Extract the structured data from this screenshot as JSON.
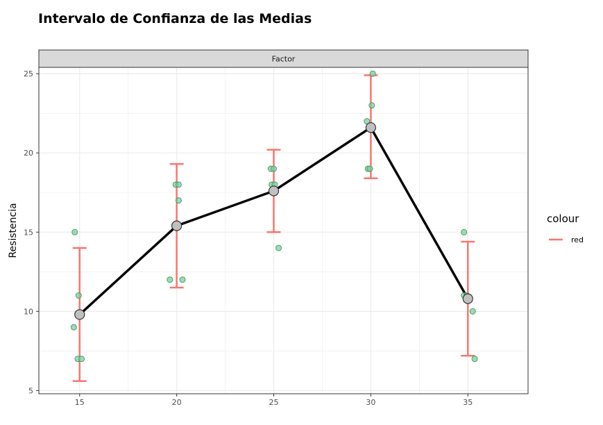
{
  "chart_data": {
    "type": "line",
    "title": "Intervalo de Confianza de las Medias",
    "facet_label": "Factor",
    "xlabel": "",
    "ylabel": "Resistencia",
    "x_categories": [
      15,
      20,
      25,
      30,
      35
    ],
    "xlim": [
      12.9,
      38.1
    ],
    "ylim": [
      4.8,
      25.4
    ],
    "y_ticks": [
      5,
      10,
      15,
      20,
      25
    ],
    "grid": true,
    "means": [
      {
        "x": 15,
        "y": 9.8
      },
      {
        "x": 20,
        "y": 15.4
      },
      {
        "x": 25,
        "y": 17.6
      },
      {
        "x": 30,
        "y": 21.6
      },
      {
        "x": 35,
        "y": 10.8
      }
    ],
    "error_bars": [
      {
        "x": 15,
        "low": 5.6,
        "high": 14.0
      },
      {
        "x": 20,
        "low": 11.5,
        "high": 19.3
      },
      {
        "x": 25,
        "low": 15.0,
        "high": 20.2
      },
      {
        "x": 30,
        "low": 18.4,
        "high": 24.9
      },
      {
        "x": 35,
        "low": 7.2,
        "high": 14.4
      }
    ],
    "observations": [
      {
        "x": 14.75,
        "y": 15
      },
      {
        "x": 14.7,
        "y": 9
      },
      {
        "x": 14.9,
        "y": 7
      },
      {
        "x": 15.1,
        "y": 7
      },
      {
        "x": 14.95,
        "y": 11
      },
      {
        "x": 19.95,
        "y": 18
      },
      {
        "x": 20.1,
        "y": 18
      },
      {
        "x": 20.1,
        "y": 17
      },
      {
        "x": 19.65,
        "y": 12
      },
      {
        "x": 20.3,
        "y": 12
      },
      {
        "x": 24.85,
        "y": 19
      },
      {
        "x": 25.0,
        "y": 19
      },
      {
        "x": 24.9,
        "y": 18
      },
      {
        "x": 25.05,
        "y": 18
      },
      {
        "x": 25.25,
        "y": 14
      },
      {
        "x": 30.1,
        "y": 25
      },
      {
        "x": 30.05,
        "y": 23
      },
      {
        "x": 29.8,
        "y": 22
      },
      {
        "x": 29.85,
        "y": 19
      },
      {
        "x": 29.95,
        "y": 19
      },
      {
        "x": 34.8,
        "y": 15
      },
      {
        "x": 34.8,
        "y": 11
      },
      {
        "x": 34.95,
        "y": 11
      },
      {
        "x": 35.25,
        "y": 10
      },
      {
        "x": 35.35,
        "y": 7
      }
    ],
    "legend": {
      "title": "colour",
      "entries": [
        "red"
      ],
      "position": "right"
    },
    "colors": {
      "error_bar": "#f8766d",
      "mean_line": "#000000",
      "mean_point_fill": "#c0c0c0",
      "observation_fill": "#7fcf9f",
      "observation_stroke": "#4a9a6a",
      "strip_fill": "#d9d9d9",
      "grid": "#ebebeb"
    }
  }
}
